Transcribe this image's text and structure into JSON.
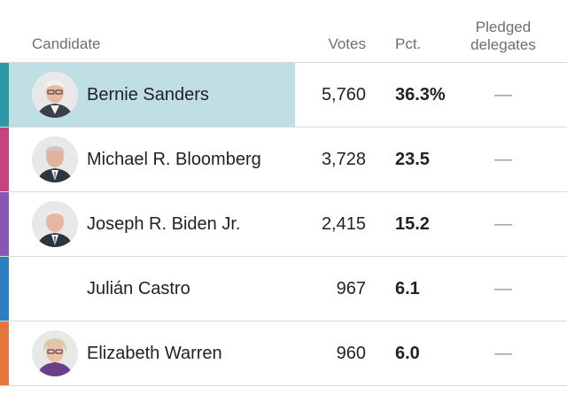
{
  "header": {
    "candidate": "Candidate",
    "votes": "Votes",
    "pct": "Pct.",
    "delegates_line1": "Pledged",
    "delegates_line2": "delegates"
  },
  "colors": {
    "sanders": "#2b98a6",
    "bloomberg": "#c2457e",
    "biden": "#8658b3",
    "castro": "#2d7fc1",
    "warren": "#e3763c",
    "leader_highlight": "#c0dfe5"
  },
  "rows": [
    {
      "name": "Bernie Sanders",
      "votes": "5,760",
      "pct": "36.3%",
      "delegates": "—",
      "has_photo": true,
      "icon": "bernie-sanders-portrait-icon"
    },
    {
      "name": "Michael R. Bloomberg",
      "votes": "3,728",
      "pct": "23.5",
      "delegates": "—",
      "has_photo": true,
      "icon": "michael-bloomberg-portrait-icon"
    },
    {
      "name": "Joseph R. Biden Jr.",
      "votes": "2,415",
      "pct": "15.2",
      "delegates": "—",
      "has_photo": true,
      "icon": "joseph-biden-portrait-icon"
    },
    {
      "name": "Julián Castro",
      "votes": "967",
      "pct": "6.1",
      "delegates": "—",
      "has_photo": false
    },
    {
      "name": "Elizabeth Warren",
      "votes": "960",
      "pct": "6.0",
      "delegates": "—",
      "has_photo": true,
      "icon": "elizabeth-warren-portrait-icon"
    }
  ]
}
